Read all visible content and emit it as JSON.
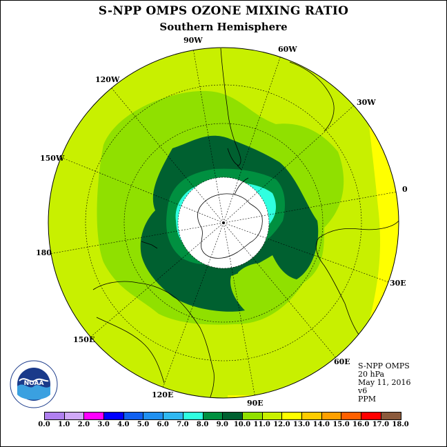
{
  "title": "S-NPP OMPS OZONE MIXING RATIO",
  "subtitle": "Southern Hemisphere",
  "longitude_labels": [
    "90W",
    "60W",
    "30W",
    "0",
    "30E",
    "60E",
    "90E",
    "120E",
    "150E",
    "180",
    "150W",
    "120W"
  ],
  "info": {
    "instrument": "S-NPP OMPS",
    "level": "20 hPa",
    "date": "May 11, 2016",
    "version": "v6",
    "units": "PPM"
  },
  "logo": {
    "text": "NOAA",
    "icon": "noaa-logo"
  },
  "colorbar": {
    "labels": [
      "0.0",
      "1.0",
      "2.0",
      "3.0",
      "4.0",
      "5.0",
      "6.0",
      "7.0",
      "8.0",
      "9.0",
      "10.0",
      "11.0",
      "12.0",
      "13.0",
      "14.0",
      "15.0",
      "16.0",
      "17.0",
      "18.0"
    ],
    "colors": [
      "#b080f0",
      "#d0a8f8",
      "#ff00ff",
      "#0000ff",
      "#1060f0",
      "#2090f0",
      "#30b8f0",
      "#30ffe0",
      "#009040",
      "#006030",
      "#90e000",
      "#c8f000",
      "#ffff00",
      "#ffcc00",
      "#ffa000",
      "#ff6000",
      "#ff0000",
      "#8b5a3c"
    ]
  }
}
